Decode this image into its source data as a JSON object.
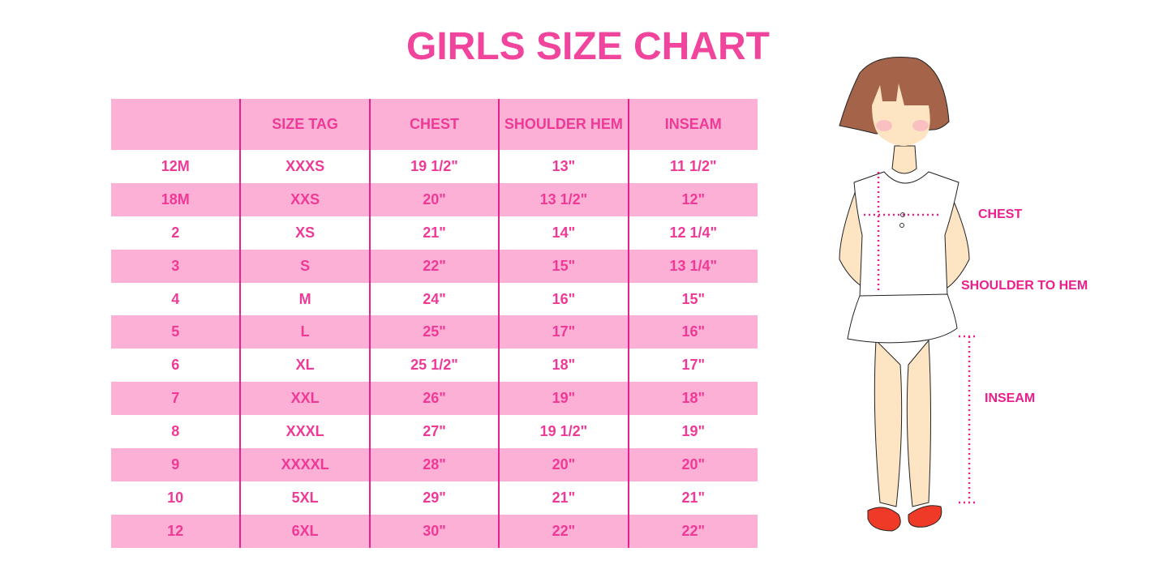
{
  "title": "GIRLS SIZE CHART",
  "table": {
    "headers": [
      "",
      "SIZE TAG",
      "CHEST",
      "SHOULDER HEM",
      "INSEAM"
    ],
    "rows": [
      [
        "12M",
        "XXXS",
        "19 1/2\"",
        "13\"",
        "11 1/2\""
      ],
      [
        "18M",
        "XXS",
        "20\"",
        "13 1/2\"",
        "12\""
      ],
      [
        "2",
        "XS",
        "21\"",
        "14\"",
        "12 1/4\""
      ],
      [
        "3",
        "S",
        "22\"",
        "15\"",
        "13 1/4\""
      ],
      [
        "4",
        "M",
        "24\"",
        "16\"",
        "15\""
      ],
      [
        "5",
        "L",
        "25\"",
        "17\"",
        "16\""
      ],
      [
        "6",
        "XL",
        "25 1/2\"",
        "18\"",
        "17\""
      ],
      [
        "7",
        "XXL",
        "26\"",
        "19\"",
        "18\""
      ],
      [
        "8",
        "XXXL",
        "27\"",
        "19 1/2\"",
        "19\""
      ],
      [
        "9",
        "XXXXL",
        "28\"",
        "20\"",
        "20\""
      ],
      [
        "10",
        "5XL",
        "29\"",
        "21\"",
        "21\""
      ],
      [
        "12",
        "6XL",
        "30\"",
        "22\"",
        "22\""
      ]
    ]
  },
  "figure": {
    "labels": {
      "chest": "CHEST",
      "shoulder_to_hem": "SHOULDER TO HEM",
      "inseam": "INSEAM"
    }
  },
  "colors": {
    "accent": "#ee3a96",
    "row_pink": "#fdb0d6",
    "divider": "#e3218f"
  }
}
